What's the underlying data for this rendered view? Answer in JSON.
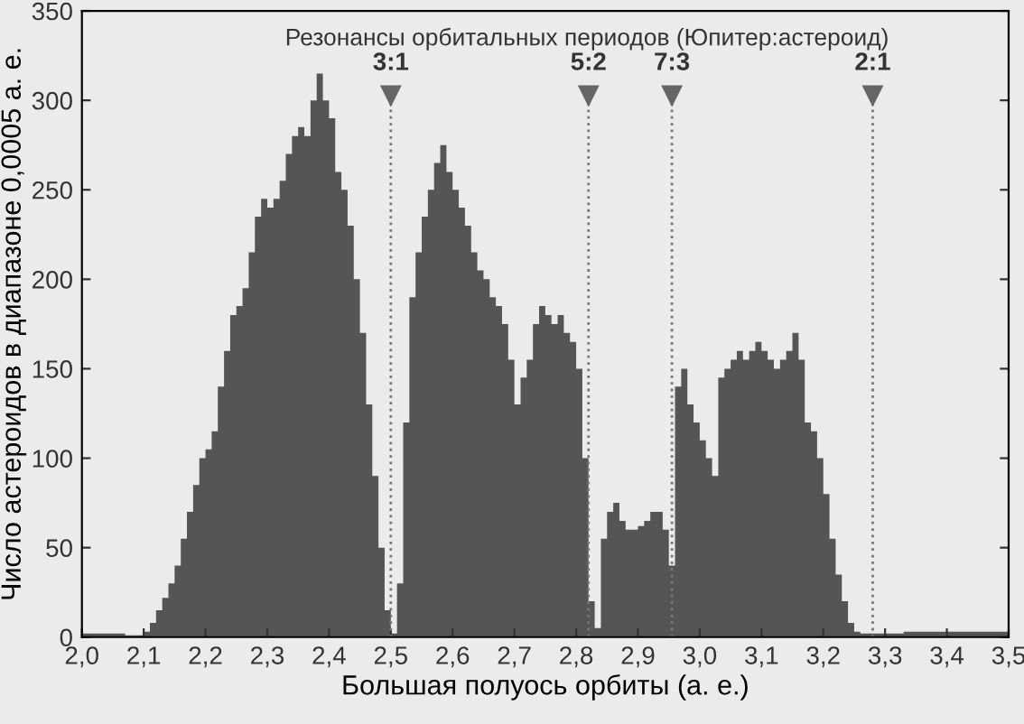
{
  "chart_data": {
    "type": "histogram",
    "xlabel": "Большая полуось орбиты (а. е.)",
    "ylabel": "Число астероидов в диапазоне 0,0005 а. е.",
    "color": "#555555",
    "bins": [
      2.0,
      2.01,
      2.02,
      2.03,
      2.04,
      2.05,
      2.06,
      2.07,
      2.08,
      2.09,
      2.1,
      2.11,
      2.12,
      2.13,
      2.14,
      2.15,
      2.16,
      2.17,
      2.18,
      2.19,
      2.2,
      2.21,
      2.22,
      2.23,
      2.24,
      2.25,
      2.26,
      2.27,
      2.28,
      2.29,
      2.3,
      2.31,
      2.32,
      2.33,
      2.34,
      2.35,
      2.36,
      2.37,
      2.38,
      2.39,
      2.4,
      2.41,
      2.42,
      2.43,
      2.44,
      2.45,
      2.46,
      2.47,
      2.48,
      2.49,
      2.5,
      2.51,
      2.52,
      2.53,
      2.54,
      2.55,
      2.56,
      2.57,
      2.58,
      2.59,
      2.6,
      2.61,
      2.62,
      2.63,
      2.64,
      2.65,
      2.66,
      2.67,
      2.68,
      2.69,
      2.7,
      2.71,
      2.72,
      2.73,
      2.74,
      2.75,
      2.76,
      2.77,
      2.78,
      2.79,
      2.8,
      2.81,
      2.82,
      2.83,
      2.84,
      2.85,
      2.86,
      2.87,
      2.88,
      2.89,
      2.9,
      2.91,
      2.92,
      2.93,
      2.94,
      2.95,
      2.96,
      2.97,
      2.98,
      2.99,
      3.0,
      3.01,
      3.02,
      3.03,
      3.04,
      3.05,
      3.06,
      3.07,
      3.08,
      3.09,
      3.1,
      3.11,
      3.12,
      3.13,
      3.14,
      3.15,
      3.16,
      3.17,
      3.18,
      3.19,
      3.2,
      3.21,
      3.22,
      3.23,
      3.24,
      3.25,
      3.26,
      3.27,
      3.28,
      3.29,
      3.3,
      3.31,
      3.32,
      3.33,
      3.34,
      3.35,
      3.36,
      3.37,
      3.38,
      3.39,
      3.4,
      3.41,
      3.42,
      3.43,
      3.44,
      3.45,
      3.46,
      3.47,
      3.48,
      3.49,
      3.5
    ],
    "values": [
      2,
      2,
      2,
      2,
      2,
      2,
      2,
      1,
      1,
      1,
      3,
      8,
      15,
      22,
      30,
      40,
      55,
      70,
      85,
      100,
      105,
      115,
      140,
      160,
      180,
      185,
      195,
      215,
      235,
      245,
      240,
      245,
      255,
      270,
      280,
      285,
      280,
      300,
      315,
      300,
      290,
      260,
      250,
      230,
      200,
      170,
      130,
      90,
      50,
      15,
      2,
      30,
      120,
      190,
      215,
      235,
      250,
      265,
      275,
      260,
      250,
      240,
      230,
      215,
      205,
      200,
      190,
      185,
      175,
      155,
      130,
      145,
      155,
      175,
      185,
      180,
      175,
      180,
      170,
      165,
      150,
      100,
      20,
      5,
      55,
      70,
      75,
      65,
      60,
      60,
      62,
      65,
      70,
      70,
      60,
      40,
      140,
      150,
      130,
      120,
      110,
      100,
      90,
      145,
      150,
      155,
      160,
      155,
      160,
      165,
      160,
      155,
      150,
      155,
      160,
      170,
      155,
      120,
      115,
      100,
      80,
      55,
      35,
      20,
      8,
      3,
      2,
      2,
      2,
      2,
      2,
      2,
      2,
      3,
      3,
      3,
      3,
      3,
      3,
      3,
      3,
      3,
      3,
      3,
      3,
      3,
      3,
      3,
      3,
      3
    ],
    "xlim": [
      2.0,
      3.5
    ],
    "ylim": [
      0,
      350
    ],
    "xticks": [
      {
        "value": 2.0,
        "label": "2,0"
      },
      {
        "value": 2.1,
        "label": "2,1"
      },
      {
        "value": 2.2,
        "label": "2,2"
      },
      {
        "value": 2.3,
        "label": "2,3"
      },
      {
        "value": 2.4,
        "label": "2,4"
      },
      {
        "value": 2.5,
        "label": "2,5"
      },
      {
        "value": 2.6,
        "label": "2,6"
      },
      {
        "value": 2.7,
        "label": "2,7"
      },
      {
        "value": 2.8,
        "label": "2,8"
      },
      {
        "value": 2.9,
        "label": "2,9"
      },
      {
        "value": 3.0,
        "label": "3,0"
      },
      {
        "value": 3.1,
        "label": "3,1"
      },
      {
        "value": 3.2,
        "label": "3,2"
      },
      {
        "value": 3.3,
        "label": "3,3"
      },
      {
        "value": 3.4,
        "label": "3,4"
      },
      {
        "value": 3.5,
        "label": "3,5"
      }
    ],
    "yticks": [
      0,
      50,
      100,
      150,
      200,
      250,
      300,
      350
    ],
    "ref_lines": [
      {
        "axis": "x",
        "value": 2.5,
        "line_style": "dotted",
        "color": "#777777"
      },
      {
        "axis": "x",
        "value": 2.82,
        "line_style": "dotted",
        "color": "#777777"
      },
      {
        "axis": "x",
        "value": 2.955,
        "line_style": "dotted",
        "color": "#777777"
      },
      {
        "axis": "x",
        "value": 3.28,
        "line_style": "dotted",
        "color": "#777777"
      }
    ],
    "annotations": [
      "Резонансы орбитальных периодов (Юпитер:астероид)",
      {
        "text": "3:1",
        "x": 2.5,
        "y": 300
      },
      {
        "text": "5:2",
        "x": 2.82,
        "y": 300
      },
      {
        "text": "7:3",
        "x": 2.955,
        "y": 300
      },
      {
        "text": "2:1",
        "x": 3.28,
        "y": 300
      }
    ],
    "grid": false,
    "legend": false
  }
}
